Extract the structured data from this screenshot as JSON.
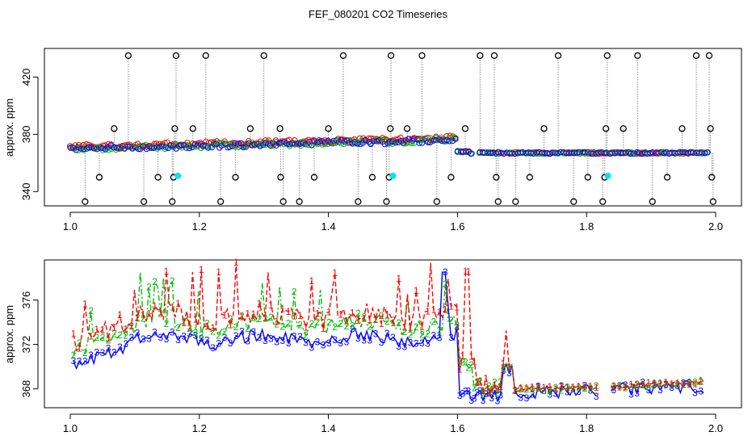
{
  "title": "FEF_080201  CO2 Timeseries",
  "colors": {
    "black": "#000000",
    "red": "#ff0000",
    "green": "#00bb00",
    "blue": "#0000ff",
    "cyan": "#00e5ee",
    "grey": "#8c8c8c"
  },
  "chart_data": [
    {
      "type": "scatter",
      "title": "",
      "xlabel": "",
      "ylabel": "approx. ppm",
      "xlim": [
        0.96,
        2.04
      ],
      "ylim": [
        330,
        440
      ],
      "x_ticks": [
        "1.0",
        "1.2",
        "1.4",
        "1.6",
        "1.8",
        "2.0"
      ],
      "y_ticks": [
        "340",
        "380",
        "420"
      ],
      "y_tick_values": [
        340,
        380,
        420
      ],
      "x_tick_values": [
        1.0,
        1.2,
        1.4,
        1.6,
        1.8,
        2.0
      ],
      "reference_spikes": [
        {
          "x": 1.023,
          "y": 333
        },
        {
          "x": 1.045,
          "y": 350
        },
        {
          "x": 1.068,
          "y": 384
        },
        {
          "x": 1.09,
          "y": 435
        },
        {
          "x": 1.114,
          "y": 333
        },
        {
          "x": 1.136,
          "y": 350
        },
        {
          "x": 1.158,
          "y": 333
        },
        {
          "x": 1.16,
          "y": 350
        },
        {
          "x": 1.162,
          "y": 384
        },
        {
          "x": 1.164,
          "y": 435
        },
        {
          "x": 1.19,
          "y": 384
        },
        {
          "x": 1.21,
          "y": 435
        },
        {
          "x": 1.233,
          "y": 333
        },
        {
          "x": 1.256,
          "y": 350
        },
        {
          "x": 1.279,
          "y": 384
        },
        {
          "x": 1.3,
          "y": 435
        },
        {
          "x": 1.325,
          "y": 384
        },
        {
          "x": 1.326,
          "y": 350
        },
        {
          "x": 1.33,
          "y": 333
        },
        {
          "x": 1.355,
          "y": 333
        },
        {
          "x": 1.378,
          "y": 350
        },
        {
          "x": 1.4,
          "y": 384
        },
        {
          "x": 1.423,
          "y": 435
        },
        {
          "x": 1.446,
          "y": 333
        },
        {
          "x": 1.468,
          "y": 350
        },
        {
          "x": 1.49,
          "y": 333
        },
        {
          "x": 1.494,
          "y": 350
        },
        {
          "x": 1.496,
          "y": 384
        },
        {
          "x": 1.497,
          "y": 435
        },
        {
          "x": 1.522,
          "y": 384
        },
        {
          "x": 1.545,
          "y": 435
        },
        {
          "x": 1.568,
          "y": 333
        },
        {
          "x": 1.59,
          "y": 350
        },
        {
          "x": 1.612,
          "y": 384
        },
        {
          "x": 1.635,
          "y": 435
        },
        {
          "x": 1.657,
          "y": 435
        },
        {
          "x": 1.66,
          "y": 350
        },
        {
          "x": 1.663,
          "y": 333
        },
        {
          "x": 1.69,
          "y": 333
        },
        {
          "x": 1.712,
          "y": 350
        },
        {
          "x": 1.734,
          "y": 384
        },
        {
          "x": 1.756,
          "y": 435
        },
        {
          "x": 1.78,
          "y": 333
        },
        {
          "x": 1.802,
          "y": 350
        },
        {
          "x": 1.825,
          "y": 333
        },
        {
          "x": 1.828,
          "y": 350
        },
        {
          "x": 1.83,
          "y": 384
        },
        {
          "x": 1.832,
          "y": 435
        },
        {
          "x": 1.857,
          "y": 384
        },
        {
          "x": 1.879,
          "y": 435
        },
        {
          "x": 1.902,
          "y": 333
        },
        {
          "x": 1.925,
          "y": 350
        },
        {
          "x": 1.948,
          "y": 384
        },
        {
          "x": 1.97,
          "y": 435
        },
        {
          "x": 1.99,
          "y": 435
        },
        {
          "x": 1.992,
          "y": 384
        },
        {
          "x": 1.994,
          "y": 350
        },
        {
          "x": 1.996,
          "y": 333
        }
      ],
      "cyan_points": [
        {
          "x": 1.167,
          "y": 351
        },
        {
          "x": 1.5,
          "y": 351
        },
        {
          "x": 1.833,
          "y": 351
        }
      ],
      "series": [
        {
          "name": "1",
          "color": "red"
        },
        {
          "name": "2",
          "color": "green"
        },
        {
          "name": "3",
          "color": "blue"
        }
      ]
    },
    {
      "type": "line",
      "title": "",
      "xlabel": "",
      "ylabel": "approx. ppm",
      "xlim": [
        0.96,
        2.04
      ],
      "ylim": [
        366.3,
        379.6
      ],
      "x_ticks": [
        "1.0",
        "1.2",
        "1.4",
        "1.6",
        "1.8",
        "2.0"
      ],
      "y_ticks": [
        "368",
        "372",
        "376"
      ],
      "y_tick_values": [
        368,
        372,
        376
      ],
      "x_tick_values": [
        1.0,
        1.2,
        1.4,
        1.6,
        1.8,
        2.0
      ],
      "point_labels": [
        "1",
        "2",
        "3"
      ],
      "series": [
        {
          "name": "1",
          "color": "red",
          "style": "dashed",
          "description": "mostly 373-376 with spikes to ~378 before x=1.6, drops to ~367 after x=1.6, ~368 beyond x=1.68"
        },
        {
          "name": "2",
          "color": "green",
          "style": "dash-dot",
          "description": "mostly 372-375 with peaks to ~377 before x=1.6, ~368 after"
        },
        {
          "name": "3",
          "color": "blue",
          "style": "solid",
          "description": "370 rising to ~373 before x=1.6 with spike to ~378.5 near x=1.58, ~367.5-368.2 after"
        }
      ]
    }
  ]
}
